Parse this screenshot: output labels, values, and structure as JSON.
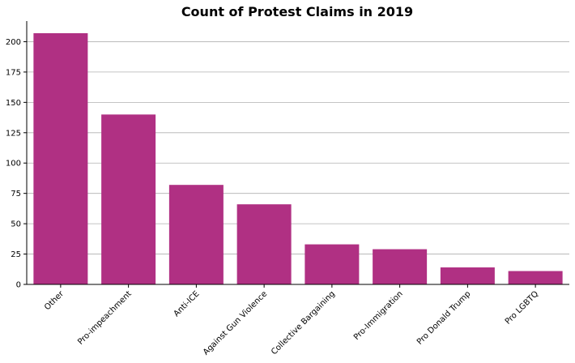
{
  "chart_data": {
    "type": "bar",
    "title": "Count of Protest Claims in 2019",
    "xlabel": "",
    "ylabel": "",
    "categories": [
      "Other",
      "Pro-impeachment",
      "Anti-ICE",
      "Against Gun Violence",
      "Collective Bargaining",
      "Pro-Immigration",
      "Pro Donald Trump",
      "Pro LGBTQ"
    ],
    "values": [
      207,
      140,
      82,
      66,
      33,
      29,
      14,
      11
    ],
    "ylim": [
      0,
      217
    ],
    "yticks": [
      0,
      25,
      50,
      75,
      100,
      125,
      150,
      175,
      200
    ],
    "grid": "horizontal",
    "bar_color": "#b03083"
  }
}
